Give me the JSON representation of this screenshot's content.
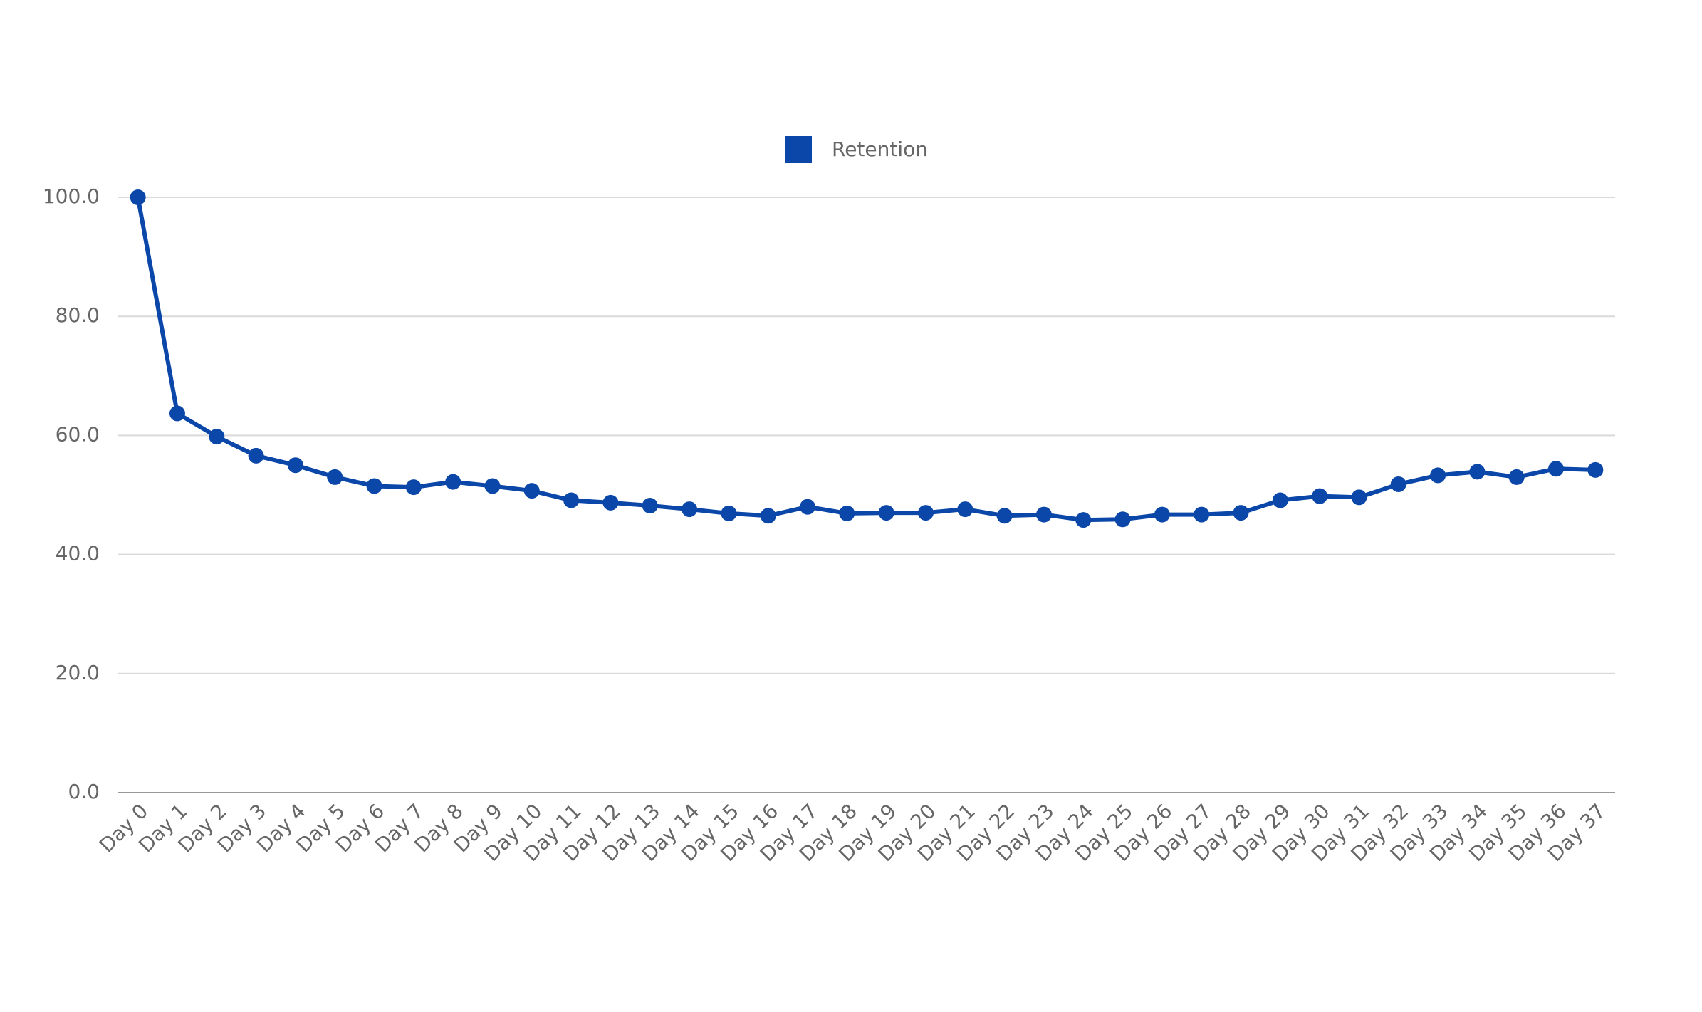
{
  "chart_data": {
    "type": "line",
    "categories": [
      "Day 0",
      "Day 1",
      "Day 2",
      "Day 3",
      "Day 4",
      "Day 5",
      "Day 6",
      "Day 7",
      "Day 8",
      "Day 9",
      "Day 10",
      "Day 11",
      "Day 12",
      "Day 13",
      "Day 14",
      "Day 15",
      "Day 16",
      "Day 17",
      "Day 18",
      "Day 19",
      "Day 20",
      "Day 21",
      "Day 22",
      "Day 23",
      "Day 24",
      "Day 25",
      "Day 26",
      "Day 27",
      "Day 28",
      "Day 29",
      "Day 30",
      "Day 31",
      "Day 32",
      "Day 33",
      "Day 34",
      "Day 35",
      "Day 36",
      "Day 37"
    ],
    "series": [
      {
        "name": "Retention",
        "color": "#0a47a8",
        "values": [
          100,
          63.7,
          59.8,
          56.6,
          55.0,
          53.0,
          51.5,
          51.3,
          52.2,
          51.5,
          50.7,
          49.1,
          48.7,
          48.2,
          47.6,
          46.9,
          46.5,
          48.0,
          46.9,
          47.0,
          47.0,
          47.6,
          46.5,
          46.7,
          45.8,
          45.9,
          46.7,
          46.7,
          47.0,
          49.1,
          49.8,
          49.6,
          51.8,
          53.3,
          53.9,
          53.0,
          54.4,
          54.2
        ]
      }
    ],
    "ylim": [
      0,
      100
    ],
    "yticks": [
      {
        "value": 0,
        "label": "0.0"
      },
      {
        "value": 20,
        "label": "20.0"
      },
      {
        "value": 40,
        "label": "40.0"
      },
      {
        "value": 60,
        "label": "60.0"
      },
      {
        "value": 80,
        "label": "80.0"
      },
      {
        "value": 100,
        "label": "100.0"
      }
    ],
    "grid": true,
    "legend": "top"
  }
}
